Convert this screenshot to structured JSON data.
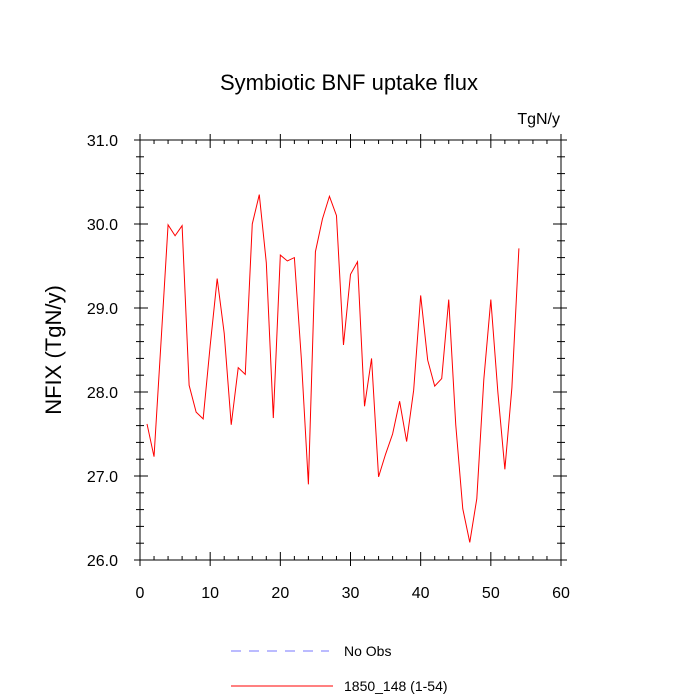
{
  "chart_data": {
    "type": "line",
    "title": "Symbiotic BNF uptake flux",
    "units_label": "TgN/y",
    "xlabel": "",
    "ylabel": "NFIX  (TgN/y)",
    "xlim": [
      0,
      60
    ],
    "ylim": [
      26.0,
      31.0
    ],
    "x_ticks": [
      0,
      10,
      20,
      30,
      40,
      50,
      60
    ],
    "x_tick_labels": [
      "0",
      "10",
      "20",
      "30",
      "40",
      "50",
      "60"
    ],
    "y_ticks": [
      26.0,
      27.0,
      28.0,
      29.0,
      30.0,
      31.0
    ],
    "y_tick_labels": [
      "26.0",
      "27.0",
      "28.0",
      "29.0",
      "30.0",
      "31.0"
    ],
    "grid": false,
    "legend_position": "bottom",
    "series": [
      {
        "name": "No Obs",
        "color": "#7777ff",
        "dash": "dashed",
        "x": [],
        "values": []
      },
      {
        "name": "1850_148 (1-54)",
        "color": "#ff0000",
        "dash": "solid",
        "x": [
          1,
          2,
          3,
          4,
          5,
          6,
          7,
          8,
          9,
          10,
          11,
          12,
          13,
          14,
          15,
          16,
          17,
          18,
          19,
          20,
          21,
          22,
          23,
          24,
          25,
          26,
          27,
          28,
          29,
          30,
          31,
          32,
          33,
          34,
          35,
          36,
          37,
          38,
          39,
          40,
          41,
          42,
          43,
          44,
          45,
          46,
          47,
          48,
          49,
          50,
          51,
          52,
          53,
          54
        ],
        "values": [
          27.62,
          27.23,
          28.6,
          29.99,
          29.86,
          29.98,
          28.08,
          27.76,
          27.68,
          28.55,
          29.35,
          28.7,
          27.61,
          28.29,
          28.21,
          30.0,
          30.35,
          29.54,
          27.69,
          29.63,
          29.56,
          29.6,
          28.39,
          26.9,
          29.67,
          30.06,
          30.33,
          30.1,
          28.56,
          29.4,
          29.55,
          27.83,
          28.4,
          26.99,
          27.26,
          27.5,
          27.89,
          27.41,
          28.02,
          29.15,
          28.38,
          28.07,
          28.16,
          29.1,
          27.61,
          26.61,
          26.21,
          26.73,
          28.15,
          29.1,
          28.0,
          27.08,
          28.05,
          29.71
        ]
      }
    ]
  }
}
